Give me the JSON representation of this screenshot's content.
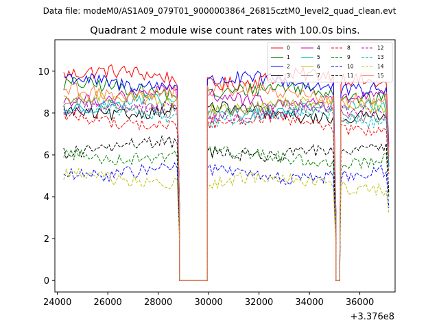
{
  "figure": {
    "suptitle": "Data file: modeM0/AS1A09_079T01_9000003864_26815cztM0_level2_quad_clean.evt",
    "offset_label": "+3.376e8"
  },
  "chart_data": {
    "type": "line",
    "title": "Quadrant 2 module wise count rates with 100.0s bins.",
    "xlabel": "",
    "ylabel": "",
    "x_offset": 337600000,
    "xlim": [
      23900,
      37400
    ],
    "ylim": [
      -0.55,
      11.5
    ],
    "xticks": [
      24000,
      26000,
      28000,
      30000,
      32000,
      34000,
      36000
    ],
    "xtick_labels": [
      "24000",
      "26000",
      "28000",
      "30000",
      "32000",
      "34000",
      "36000"
    ],
    "yticks": [
      0,
      2,
      4,
      6,
      8,
      10
    ],
    "ytick_labels": [
      "0",
      "2",
      "4",
      "6",
      "8",
      "10"
    ],
    "grid": false,
    "legend_position": "top-right",
    "bin_seconds": 100,
    "segments": [
      {
        "start": 24250,
        "end": 28750,
        "ramp_end": 28850
      },
      {
        "start": 29950,
        "end": 34950,
        "ramp_end": 35050
      },
      {
        "start": 35250,
        "end": 37050,
        "ramp_end": 37150
      }
    ],
    "gaps_at_zero": [
      [
        28850,
        29950
      ],
      [
        35050,
        35200
      ]
    ],
    "series": [
      {
        "name": "0",
        "color": "#ff0000",
        "dash": "solid",
        "mean": 9.6,
        "noise": 0.35
      },
      {
        "name": "1",
        "color": "#008000",
        "dash": "solid",
        "mean": 9.0,
        "noise": 0.35
      },
      {
        "name": "2",
        "color": "#0000ff",
        "dash": "solid",
        "mean": 9.4,
        "noise": 0.35
      },
      {
        "name": "3",
        "color": "#000000",
        "dash": "solid",
        "mean": 8.0,
        "noise": 0.3
      },
      {
        "name": "4",
        "color": "#bf00bf",
        "dash": "solid",
        "mean": 8.7,
        "noise": 0.3
      },
      {
        "name": "5",
        "color": "#00bfbf",
        "dash": "solid",
        "mean": 8.2,
        "noise": 0.3
      },
      {
        "name": "6",
        "color": "#bfbf00",
        "dash": "solid",
        "mean": 8.4,
        "noise": 0.3
      },
      {
        "name": "7",
        "color": "#808080",
        "dash": "solid",
        "mean": 8.1,
        "noise": 0.3
      },
      {
        "name": "8",
        "color": "#ff0000",
        "dash": "dashed",
        "mean": 7.5,
        "noise": 0.3
      },
      {
        "name": "9",
        "color": "#008000",
        "dash": "dashed",
        "mean": 5.9,
        "noise": 0.3
      },
      {
        "name": "10",
        "color": "#0000ff",
        "dash": "dashed",
        "mean": 5.1,
        "noise": 0.3
      },
      {
        "name": "11",
        "color": "#000000",
        "dash": "dashed",
        "mean": 6.2,
        "noise": 0.3
      },
      {
        "name": "12",
        "color": "#bf00bf",
        "dash": "dashed",
        "mean": 8.0,
        "noise": 0.3
      },
      {
        "name": "13",
        "color": "#00bfbf",
        "dash": "dashed",
        "mean": 7.8,
        "noise": 0.3
      },
      {
        "name": "14",
        "color": "#bfbf00",
        "dash": "dashed",
        "mean": 4.7,
        "noise": 0.3
      },
      {
        "name": "15",
        "color": "#ff7f50",
        "dash": "solid",
        "mean": 8.9,
        "noise": 0.35
      }
    ]
  }
}
